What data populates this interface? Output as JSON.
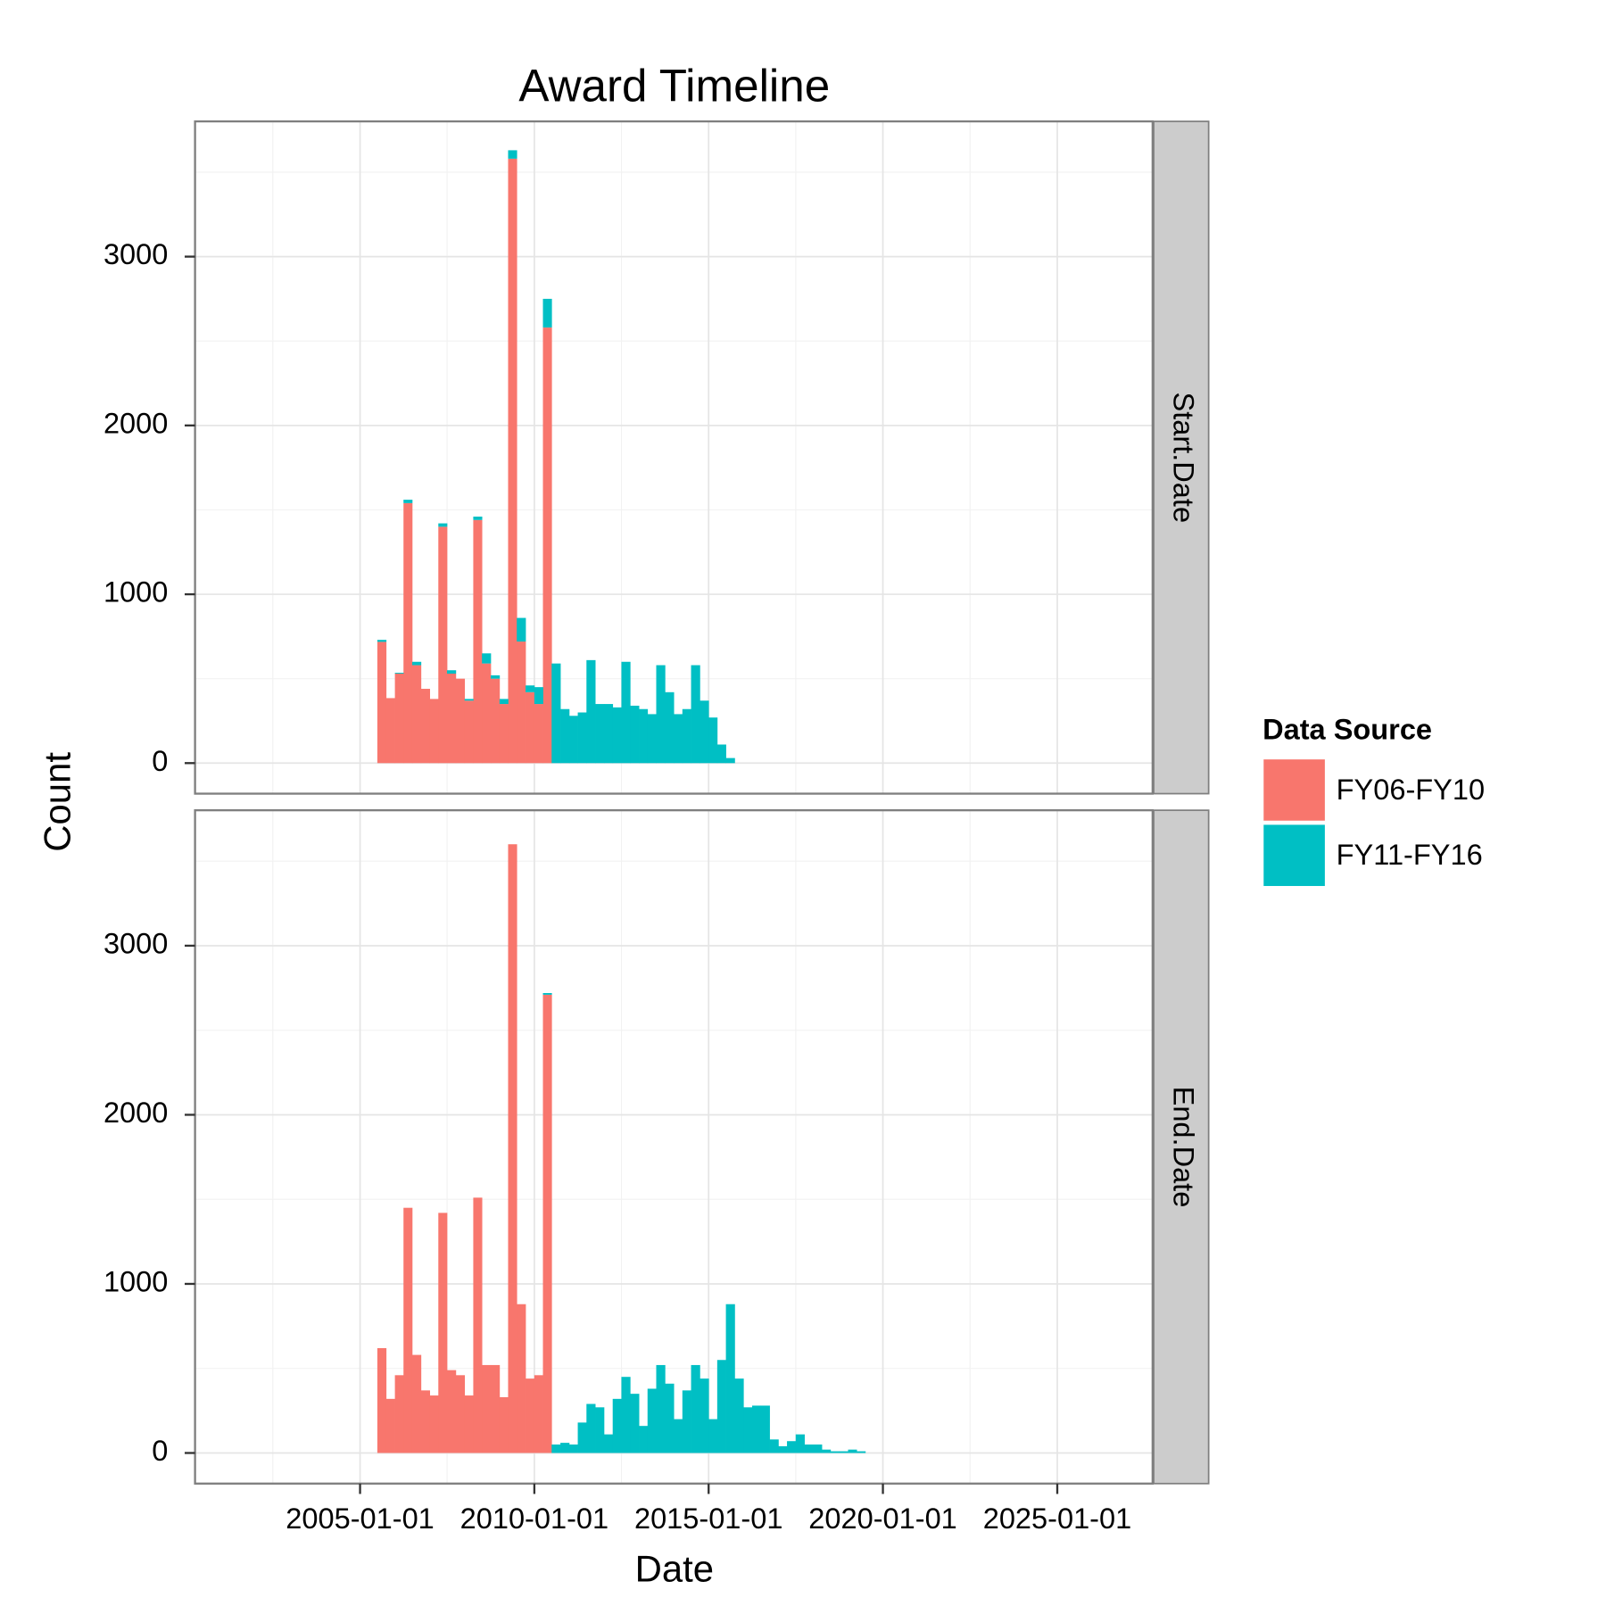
{
  "chart_data": {
    "type": "histogram",
    "title": "Award Timeline",
    "x_label": "Date",
    "y_label": "Count",
    "legend_title": "Data Source",
    "series": [
      {
        "name": "FY06-FY10",
        "color": "#f8766d"
      },
      {
        "name": "FY11-FY16",
        "color": "#00bfc4"
      }
    ],
    "bins": [
      "2005-07-01",
      "2005-10-01",
      "2006-01-01",
      "2006-04-01",
      "2006-07-01",
      "2006-10-01",
      "2007-01-01",
      "2007-04-01",
      "2007-07-01",
      "2007-10-01",
      "2008-01-01",
      "2008-04-01",
      "2008-07-01",
      "2008-10-01",
      "2009-01-01",
      "2009-04-01",
      "2009-07-01",
      "2009-10-01",
      "2010-01-01",
      "2010-04-01",
      "2010-07-01",
      "2010-10-01",
      "2011-01-01",
      "2011-04-01",
      "2011-07-01",
      "2011-10-01",
      "2012-01-01",
      "2012-04-01",
      "2012-07-01",
      "2012-10-01",
      "2013-01-01",
      "2013-04-01",
      "2013-07-01",
      "2013-10-01",
      "2014-01-01",
      "2014-04-01",
      "2014-07-01",
      "2014-10-01",
      "2015-01-01",
      "2015-04-01",
      "2015-07-01",
      "2015-10-01",
      "2016-01-01",
      "2016-04-01",
      "2016-07-01",
      "2016-10-01",
      "2017-01-01",
      "2017-04-01",
      "2017-07-01",
      "2017-10-01",
      "2018-01-01",
      "2018-04-01",
      "2018-07-01",
      "2018-10-01",
      "2019-01-01",
      "2019-04-01",
      "2019-07-01",
      "2019-10-01"
    ],
    "xlim": [
      "2000-04-08",
      "2027-09-27"
    ],
    "xticks": [
      "2005-01-01",
      "2010-01-01",
      "2015-01-01",
      "2020-01-01",
      "2025-01-01"
    ],
    "x_minor_grid": [
      "2002-07-02",
      "2007-07-02",
      "2012-07-02",
      "2017-07-02",
      "2022-07-02"
    ],
    "ylim": [
      -181,
      3801
    ],
    "yticks": [
      0,
      1000,
      2000,
      3000
    ],
    "y_minor_grid": [
      500,
      1500,
      2500,
      3500
    ],
    "grid": true,
    "legend_position": "right",
    "facets": [
      {
        "label": "Start.Date",
        "series": [
          {
            "values": [
              718,
              385,
              530,
              1540,
              580,
              440,
              380,
              1400,
              530,
              500,
              370,
              1440,
              590,
              500,
              350,
              3580,
              720,
              420,
              350,
              2580,
              0,
              0,
              0,
              0,
              0,
              0,
              0,
              0,
              0,
              0,
              0,
              0,
              0,
              0,
              0,
              0,
              0,
              0,
              0,
              0,
              0,
              0,
              0,
              0,
              0,
              0,
              0,
              0,
              0,
              0,
              0,
              0,
              0,
              0,
              0,
              0,
              0
            ]
          },
          {
            "values": [
              12,
              0,
              5,
              20,
              20,
              0,
              0,
              20,
              20,
              0,
              10,
              20,
              60,
              20,
              30,
              50,
              140,
              40,
              100,
              170,
              590,
              320,
              280,
              300,
              610,
              350,
              350,
              330,
              600,
              340,
              320,
              290,
              580,
              420,
              290,
              320,
              580,
              370,
              270,
              110,
              30,
              0,
              0,
              0,
              0,
              0,
              0,
              0,
              0,
              0,
              0,
              0,
              0,
              0,
              0,
              0,
              0
            ]
          }
        ]
      },
      {
        "label": "End.Date",
        "series": [
          {
            "values": [
              620,
              320,
              460,
              1450,
              580,
              370,
              340,
              1420,
              490,
              460,
              340,
              1510,
              520,
              520,
              330,
              3600,
              880,
              440,
              460,
              2710,
              0,
              0,
              0,
              0,
              0,
              0,
              0,
              0,
              0,
              0,
              0,
              0,
              0,
              0,
              0,
              0,
              0,
              0,
              0,
              0,
              0,
              0,
              0,
              0,
              0,
              0,
              0,
              0,
              0,
              0,
              0,
              0,
              0,
              0,
              0,
              0,
              0
            ]
          },
          {
            "values": [
              0,
              0,
              0,
              0,
              0,
              0,
              0,
              0,
              0,
              0,
              0,
              0,
              0,
              0,
              0,
              0,
              0,
              0,
              0,
              10,
              50,
              60,
              50,
              180,
              290,
              270,
              110,
              320,
              450,
              350,
              160,
              380,
              520,
              410,
              200,
              370,
              520,
              440,
              200,
              550,
              880,
              440,
              270,
              280,
              280,
              80,
              40,
              70,
              110,
              50,
              50,
              20,
              10,
              10,
              20,
              10,
              0
            ]
          }
        ]
      }
    ]
  }
}
